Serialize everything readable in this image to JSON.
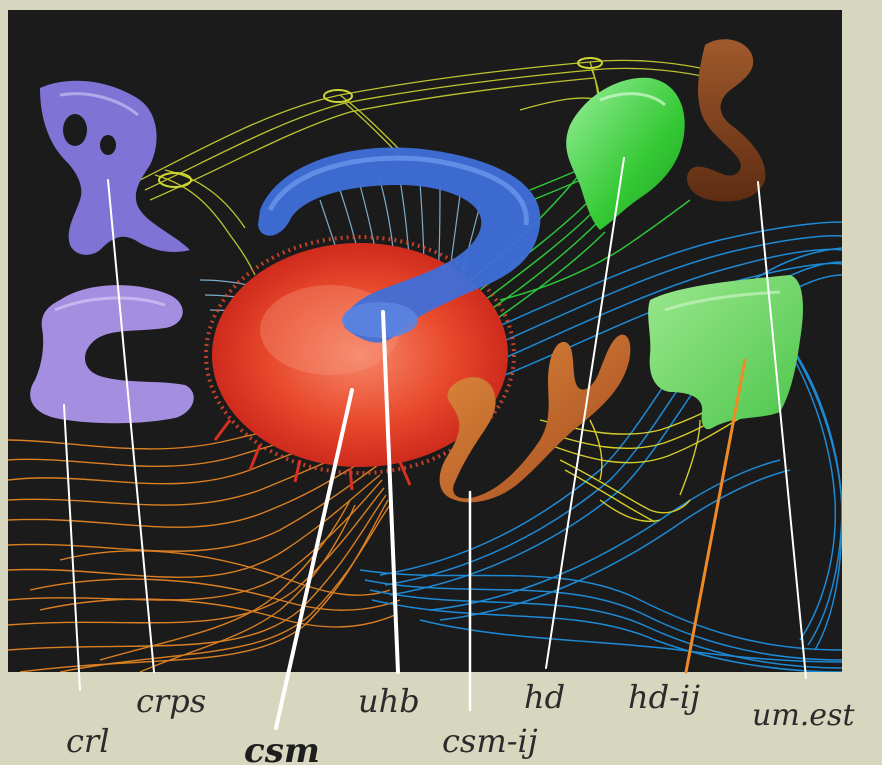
{
  "labels": {
    "crl": "crl",
    "crps": "crps",
    "csm": "csm",
    "uhb": "uhb",
    "csm_ij": "csm-ij",
    "hd": "hd",
    "hd_ij": "hd-ij",
    "um_est": "um.est"
  },
  "colors": {
    "frame": "#d7d6bf",
    "panel": "#1b1b1b",
    "crl": "#a48ee0",
    "crps": "#7f74d6",
    "csm": "#e8412a",
    "uhb": "#3f6fd8",
    "csm_ij": "#c9652a",
    "hd": "#3fcf3f",
    "hd_ij": "#6fd85a",
    "um_est": "#7a3d1e",
    "orange_fibers": "#f08a24",
    "blue_fibers": "#1e90e0",
    "yellow_fibers": "#cfd832",
    "leader_white": "#ffffff",
    "leader_orange": "#f08a24"
  }
}
